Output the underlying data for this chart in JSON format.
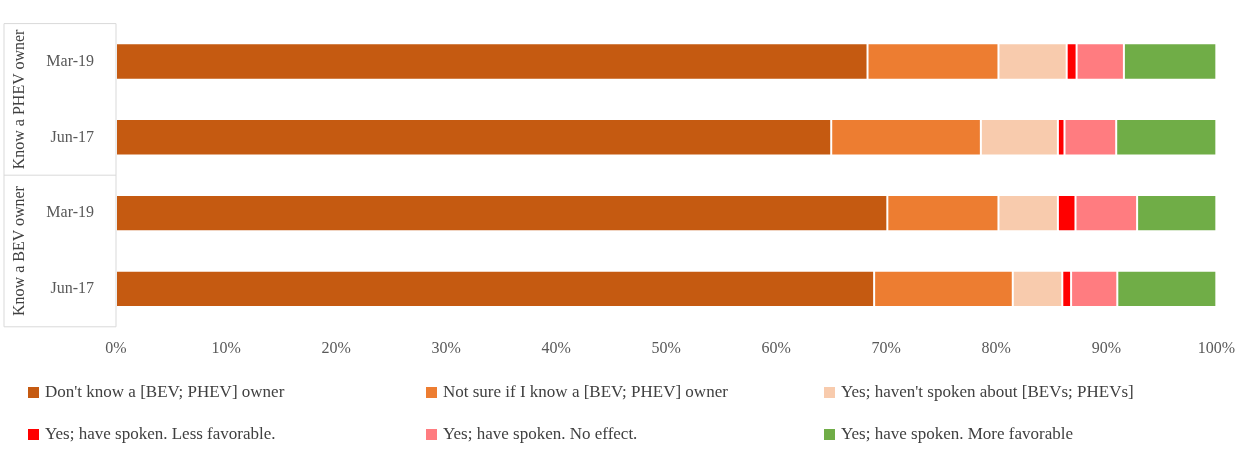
{
  "chart_data": {
    "type": "bar",
    "orientation": "horizontal",
    "stacked": true,
    "categories": [
      "Mar-19",
      "Jun-17",
      "Mar-19",
      "Jun-17"
    ],
    "annotations": [
      "Know a PHEV owner",
      "Know a BEV owner"
    ],
    "series": [
      {
        "name": "Don't know a [BEV; PHEV] owner",
        "color": "#c55a11",
        "values": [
          68.3,
          65.0,
          70.1,
          68.9
        ]
      },
      {
        "name": "Not sure if I know a [BEV; PHEV] owner",
        "color": "#ed7d31",
        "values": [
          11.9,
          13.6,
          10.1,
          12.6
        ]
      },
      {
        "name": "Yes; haven't spoken about [BEVs; PHEVs]",
        "color": "#f8cbad",
        "values": [
          6.2,
          7.0,
          5.4,
          4.5
        ]
      },
      {
        "name": "Yes; have spoken. Less favorable.",
        "color": "#ff0000",
        "values": [
          0.9,
          0.6,
          1.6,
          0.8
        ]
      },
      {
        "name": "Yes; have spoken. No effect.",
        "color": "#ff7c80",
        "values": [
          4.3,
          4.7,
          5.6,
          4.2
        ]
      },
      {
        "name": "Yes; have spoken. More favorable",
        "color": "#70ad47",
        "values": [
          8.4,
          9.1,
          7.2,
          9.0
        ]
      }
    ],
    "xlim": [
      0,
      100
    ],
    "xticks": [
      {
        "value": 0,
        "label": "0%"
      },
      {
        "value": 10,
        "label": "10%"
      },
      {
        "value": 20,
        "label": "20%"
      },
      {
        "value": 30,
        "label": "30%"
      },
      {
        "value": 40,
        "label": "40%"
      },
      {
        "value": 50,
        "label": "50%"
      },
      {
        "value": 60,
        "label": "60%"
      },
      {
        "value": 70,
        "label": "70%"
      },
      {
        "value": 80,
        "label": "80%"
      },
      {
        "value": 90,
        "label": "90%"
      },
      {
        "value": 100,
        "label": "100%"
      }
    ],
    "grid": false,
    "legend": "bottom"
  }
}
